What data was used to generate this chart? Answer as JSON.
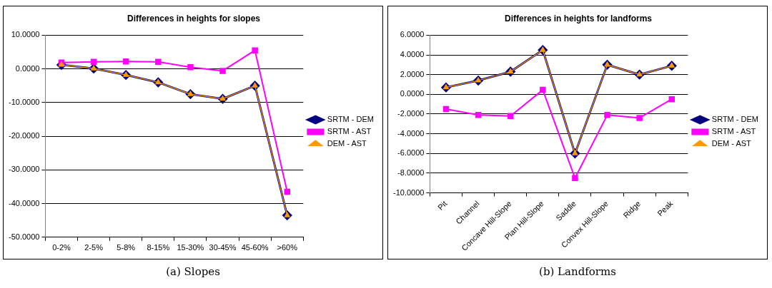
{
  "chart_data": [
    {
      "type": "line",
      "title": "Differences in heights for slopes",
      "categories": [
        "0-2%",
        "2-5%",
        "5-8%",
        "8-15%",
        "15-30%",
        "30-45%",
        "45-60%",
        ">60%"
      ],
      "series": [
        {
          "name": "SRTM - DEM",
          "color": "#000080",
          "marker": "diamond",
          "values": [
            1.2,
            0.1,
            -1.8,
            -4.0,
            -7.5,
            -8.9,
            -5.0,
            -43.5
          ]
        },
        {
          "name": "SRTM - AST",
          "color": "#ff00ff",
          "marker": "square",
          "values": [
            1.9,
            2.1,
            2.2,
            2.1,
            0.5,
            -0.6,
            5.5,
            -36.5
          ]
        },
        {
          "name": "DEM - AST",
          "color": "#ff9900",
          "marker": "triangle",
          "values": [
            1.2,
            0.1,
            -1.8,
            -4.0,
            -7.5,
            -8.9,
            -5.0,
            -43.5
          ]
        }
      ],
      "ylim": [
        -50,
        10
      ],
      "yticks": [
        {
          "value": -50,
          "label": "-50.0000"
        },
        {
          "value": -40,
          "label": "-40.0000"
        },
        {
          "value": -30,
          "label": "-30.0000"
        },
        {
          "value": -20,
          "label": "-20.0000"
        },
        {
          "value": -10,
          "label": "-10.0000"
        },
        {
          "value": 0,
          "label": "0.0000"
        },
        {
          "value": 10,
          "label": "10.0000"
        }
      ],
      "grid": "y",
      "legend": "right",
      "annotations": [
        "(a) Slopes"
      ]
    },
    {
      "type": "line",
      "title": "Differences in heights for landforms",
      "categories": [
        "Pit",
        "Channel",
        "Concave Hill-Slope",
        "Plan Hill-Slope",
        "Saddle",
        "Convex Hill-Slope",
        "Ridge",
        "Peak"
      ],
      "series": [
        {
          "name": "SRTM - DEM",
          "color": "#000080",
          "marker": "diamond",
          "values": [
            0.7,
            1.4,
            2.3,
            4.5,
            -6.0,
            3.0,
            2.0,
            2.9
          ]
        },
        {
          "name": "SRTM - AST",
          "color": "#ff00ff",
          "marker": "square",
          "values": [
            -1.5,
            -2.1,
            -2.2,
            0.45,
            -8.5,
            -2.1,
            -2.4,
            -0.5
          ]
        },
        {
          "name": "DEM - AST",
          "color": "#ff9900",
          "marker": "triangle",
          "values": [
            0.7,
            1.4,
            2.3,
            4.5,
            -6.0,
            3.0,
            2.0,
            2.9
          ]
        }
      ],
      "ylim": [
        -10,
        6
      ],
      "yticks": [
        {
          "value": -10,
          "label": "-10.0000"
        },
        {
          "value": -8,
          "label": "-8.0000"
        },
        {
          "value": -6,
          "label": "-6.0000"
        },
        {
          "value": -4,
          "label": "-4.0000"
        },
        {
          "value": -2,
          "label": "-2.0000"
        },
        {
          "value": 0,
          "label": "0.0000"
        },
        {
          "value": 2,
          "label": "2.0000"
        },
        {
          "value": 4,
          "label": "4.0000"
        },
        {
          "value": 6,
          "label": "6.0000"
        }
      ],
      "grid": "y",
      "legend": "right",
      "annotations": [
        "(b) Landforms"
      ]
    }
  ]
}
